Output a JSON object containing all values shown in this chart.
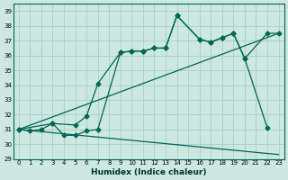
{
  "background_color": "#cce8e0",
  "grid_color": "#aad4c8",
  "line_color": "#006655",
  "xlabel": "Humidex (Indice chaleur)",
  "xlim": [
    -0.5,
    23.5
  ],
  "ylim": [
    29,
    39.5
  ],
  "yticks": [
    29,
    30,
    31,
    32,
    33,
    34,
    35,
    36,
    37,
    38,
    39
  ],
  "xticks": [
    0,
    1,
    2,
    3,
    4,
    5,
    6,
    7,
    8,
    9,
    10,
    11,
    12,
    13,
    14,
    15,
    16,
    17,
    18,
    19,
    20,
    21,
    22,
    23
  ],
  "line1_x": [
    0,
    1,
    2,
    3,
    4,
    5,
    6,
    7,
    9,
    10,
    11,
    12,
    13,
    14,
    16,
    17,
    18,
    19,
    20,
    22,
    23
  ],
  "line1_y": [
    31.0,
    30.9,
    31.0,
    31.4,
    30.6,
    30.6,
    30.9,
    31.0,
    36.2,
    36.3,
    36.3,
    36.5,
    36.5,
    38.7,
    37.1,
    36.9,
    37.2,
    37.5,
    35.8,
    37.5,
    37.5
  ],
  "line2_x": [
    0,
    3,
    5,
    6,
    7,
    9,
    10,
    11,
    12,
    13,
    14,
    16,
    17,
    18,
    19,
    20,
    22
  ],
  "line2_y": [
    31.0,
    31.4,
    31.3,
    31.9,
    34.1,
    36.2,
    36.3,
    36.3,
    36.5,
    36.5,
    38.7,
    37.1,
    36.9,
    37.2,
    37.5,
    35.8,
    31.1
  ],
  "line3_x": [
    0,
    23
  ],
  "line3_y": [
    31.0,
    37.5
  ],
  "line4_x": [
    0,
    23
  ],
  "line4_y": [
    31.0,
    29.3
  ]
}
